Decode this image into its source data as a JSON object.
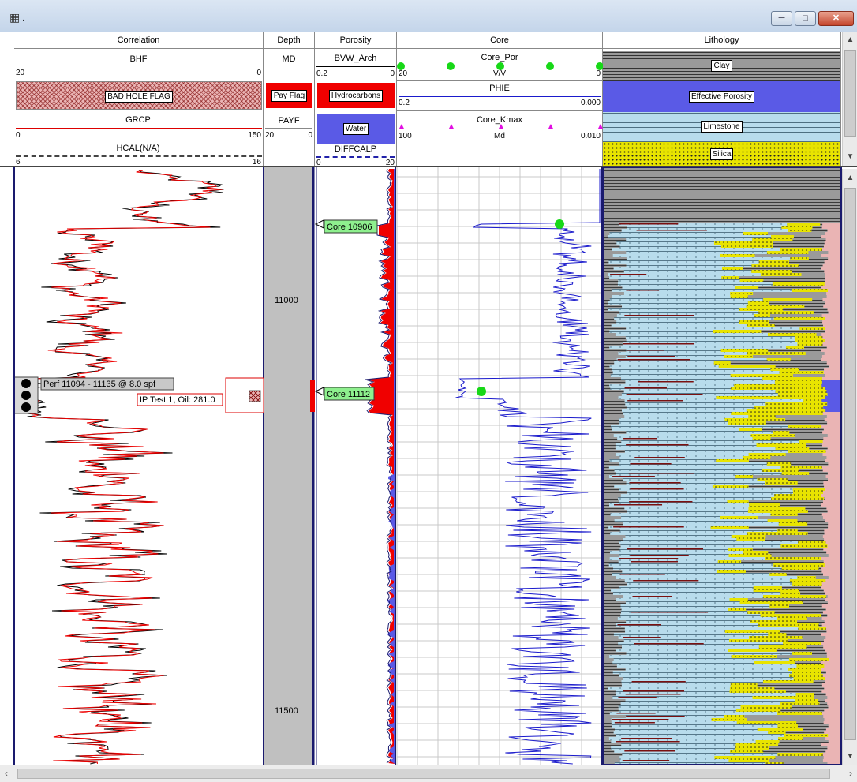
{
  "window": {
    "icon": "log-grid-icon",
    "title_glyph": "·",
    "min": "─",
    "max": "□",
    "close": "✕"
  },
  "colors": {
    "pay": "#f00000",
    "water": "#5a5ae6",
    "limestone": "#b8dcec",
    "silica": "#e8e400",
    "clay": "#9a9a9a",
    "depth": "#c0c0c0",
    "phie": "#1a1acc",
    "core_por": "#17d817",
    "kmax": "#e10fe1",
    "pink": "#eab4b4"
  },
  "tracks": {
    "correlation": {
      "title": "Correlation",
      "curves": [
        {
          "name": "BHF",
          "left": "20",
          "right": "0"
        },
        {
          "name": "BAD HOLE FLAG"
        },
        {
          "name": "GRCP",
          "left": "0",
          "right": "150"
        },
        {
          "name": "HCAL(N/A)",
          "left": "6",
          "right": "16"
        }
      ]
    },
    "depth": {
      "title": "Depth",
      "curves": [
        {
          "name": "MD"
        },
        {
          "name": "Pay Flag"
        },
        {
          "name": "PAYF",
          "left": "20",
          "right": "0"
        }
      ],
      "labels": [
        "11000",
        "11500"
      ]
    },
    "porosity": {
      "title": "Porosity",
      "curves": [
        {
          "name": "BVW_Arch",
          "left": "0.2",
          "right": "0"
        },
        {
          "name": "Hydrocarbons"
        },
        {
          "name": "Water"
        },
        {
          "name": "DIFFCALP",
          "left": "0",
          "right": "20"
        }
      ]
    },
    "core": {
      "title": "Core",
      "curves": [
        {
          "name": "Core_Por",
          "unit": "V/V",
          "left": "20",
          "right": "0"
        },
        {
          "name": "PHIE",
          "left": "0.2",
          "right": "0.000"
        },
        {
          "name": "Core_Kmax",
          "unit": "Md",
          "left": "100",
          "right": "0.010"
        }
      ]
    },
    "lithology": {
      "title": "Lithology",
      "items": [
        "Clay",
        "Effective Porosity",
        "Limestone",
        "Silica"
      ]
    }
  },
  "annotations": {
    "perf": "Perf 11094 - 11135  @ 8.0 spf",
    "ip_test": "IP Test 1, Oil: 281.0",
    "core1": "Core 10906",
    "core2": "Core 11112"
  }
}
